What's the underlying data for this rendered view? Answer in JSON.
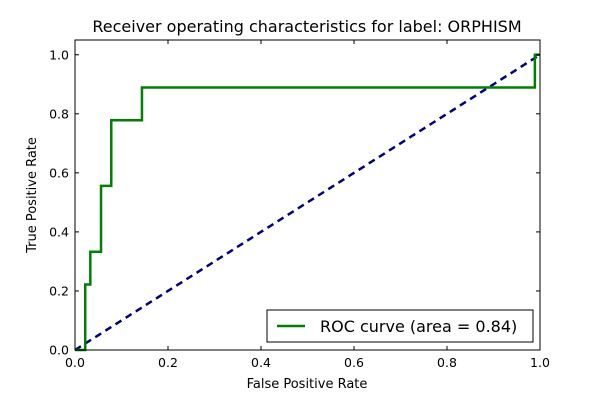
{
  "chart_data": {
    "type": "line",
    "title": "Receiver operating characteristics for label: ORPHISM",
    "xlabel": "False Positive Rate",
    "ylabel": "True Positive Rate",
    "xlim": [
      0.0,
      1.0
    ],
    "ylim": [
      0.0,
      1.05
    ],
    "x_ticks": [
      "0.0",
      "0.2",
      "0.4",
      "0.6",
      "0.8",
      "1.0"
    ],
    "y_ticks": [
      "0.0",
      "0.2",
      "0.4",
      "0.6",
      "0.8",
      "1.0"
    ],
    "grid": false,
    "legend_position": "lower-right",
    "series": [
      {
        "name": "ROC curve (area = 0.84)",
        "style": "solid",
        "color": "#008000",
        "x": [
          0.0,
          0.022,
          0.022,
          0.033,
          0.033,
          0.056,
          0.056,
          0.078,
          0.078,
          0.144,
          0.144,
          0.989,
          0.989,
          1.0
        ],
        "y": [
          0.0,
          0.0,
          0.222,
          0.222,
          0.333,
          0.333,
          0.556,
          0.556,
          0.778,
          0.778,
          0.889,
          0.889,
          1.0,
          1.0
        ]
      },
      {
        "name": "",
        "style": "dashed",
        "color": "#000080",
        "x": [
          0.0,
          1.0
        ],
        "y": [
          0.0,
          1.0
        ]
      }
    ]
  }
}
